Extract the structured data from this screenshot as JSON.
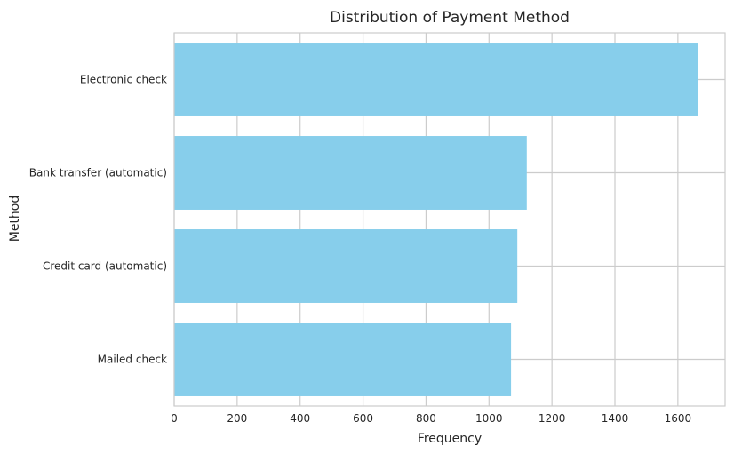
{
  "chart_data": {
    "type": "bar",
    "orientation": "horizontal",
    "title": "Distribution of Payment Method",
    "xlabel": "Frequency",
    "ylabel": "Method",
    "categories": [
      "Electronic check",
      "Bank transfer (automatic)",
      "Credit card (automatic)",
      "Mailed check"
    ],
    "values": [
      1665,
      1120,
      1090,
      1070
    ],
    "xlim": [
      0,
      1750
    ],
    "xticks": [
      0,
      200,
      400,
      600,
      800,
      1000,
      1200,
      1400,
      1600
    ],
    "grid": true,
    "bar_color": "#87CEEB",
    "grid_color": "#cccccc"
  }
}
